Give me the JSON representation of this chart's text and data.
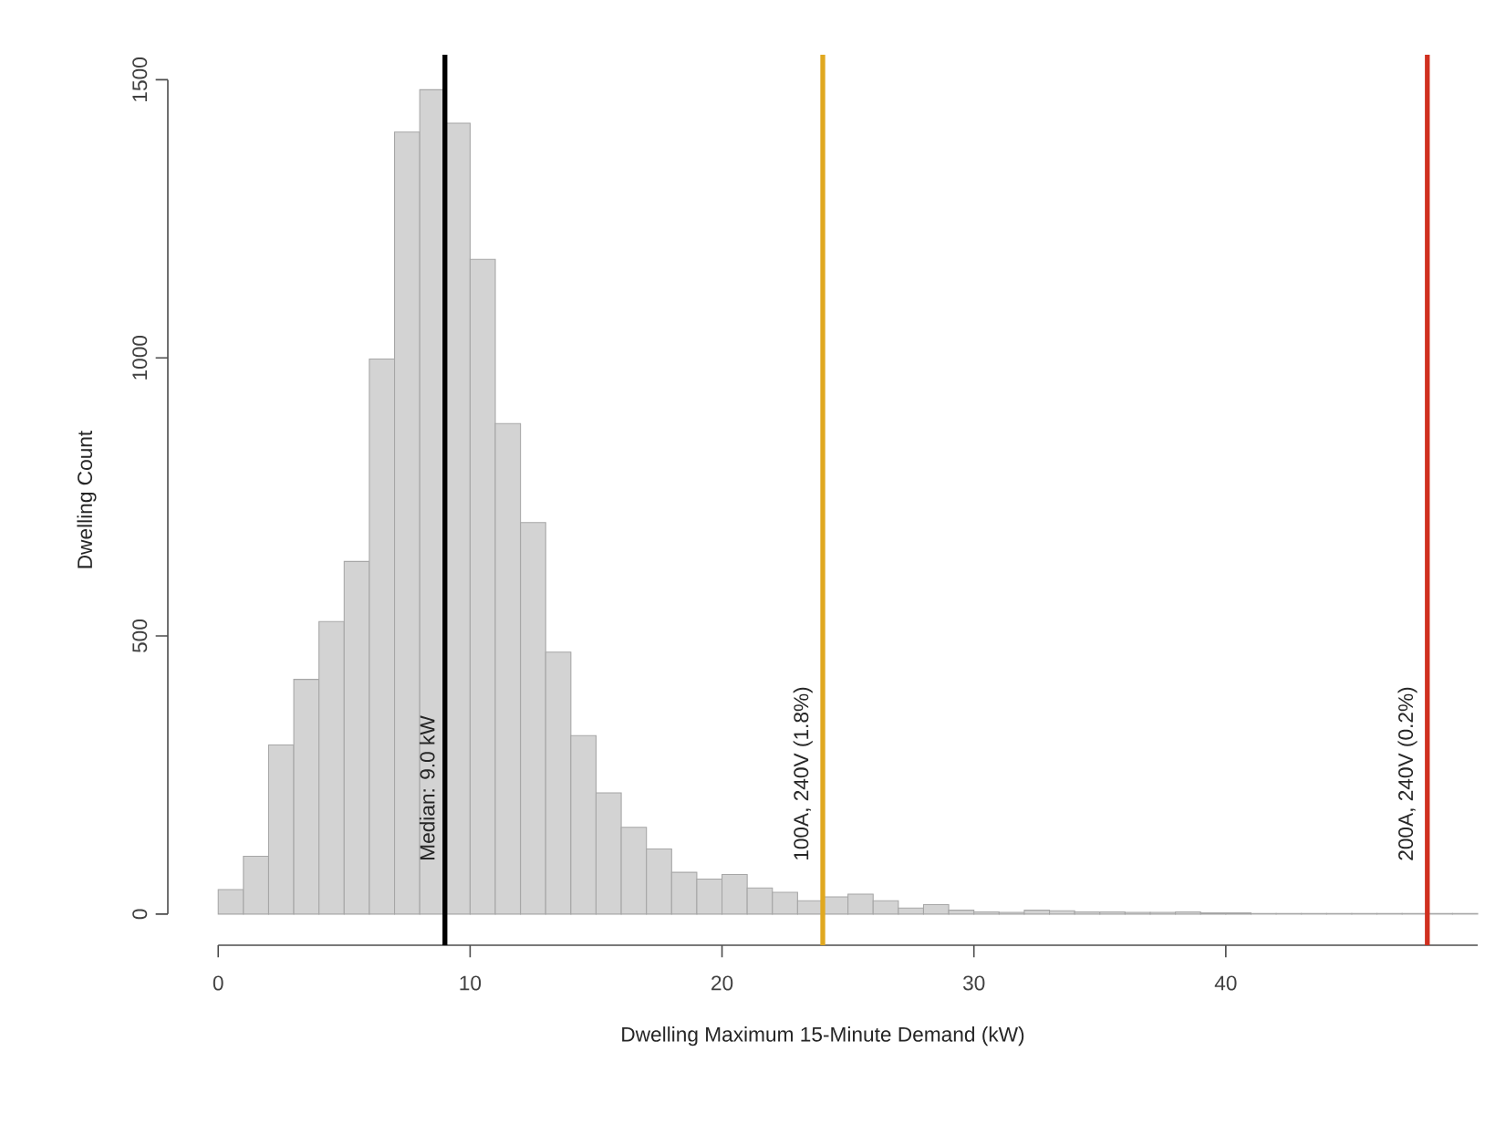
{
  "chart_data": {
    "type": "histogram",
    "xlabel": "Dwelling Maximum 15-Minute Demand (kW)",
    "ylabel": "Dwelling Count",
    "color": "#d3d3d3",
    "bins": [
      0,
      1,
      2,
      3,
      4,
      5,
      6,
      7,
      8,
      9,
      10,
      11,
      12,
      13,
      14,
      15,
      16,
      17,
      18,
      19,
      20,
      21,
      22,
      23,
      24,
      25,
      26,
      27,
      28,
      29,
      30,
      31,
      32,
      33,
      34,
      35,
      36,
      37,
      38,
      39,
      40,
      41,
      42,
      43,
      44,
      45,
      46,
      47,
      48,
      49,
      50
    ],
    "values": [
      44,
      104,
      304,
      422,
      526,
      634,
      998,
      1406,
      1482,
      1422,
      1177,
      882,
      704,
      471,
      321,
      218,
      156,
      117,
      75,
      63,
      71,
      47,
      39,
      24,
      31,
      36,
      24,
      11,
      17,
      7,
      4,
      3,
      7,
      6,
      4,
      4,
      3,
      3,
      4,
      2,
      2,
      1,
      1,
      1,
      1,
      1,
      1,
      1,
      1,
      1
    ],
    "xlim": [
      -2,
      50
    ],
    "ylim": [
      -56,
      1545
    ],
    "xticks": [
      0,
      10,
      20,
      30,
      40
    ],
    "yticks": [
      0,
      500,
      1000,
      1500
    ],
    "grid": false,
    "ref_lines": [
      {
        "axis": "x",
        "value": 9,
        "label": "Median: 9.0 kW",
        "color": "#000000"
      },
      {
        "axis": "x",
        "value": 24,
        "label": "100A, 240V (1.8%)",
        "color": "#e0a820"
      },
      {
        "axis": "x",
        "value": 48,
        "label": "200A, 240V (0.2%)",
        "color": "#d03020"
      }
    ]
  }
}
